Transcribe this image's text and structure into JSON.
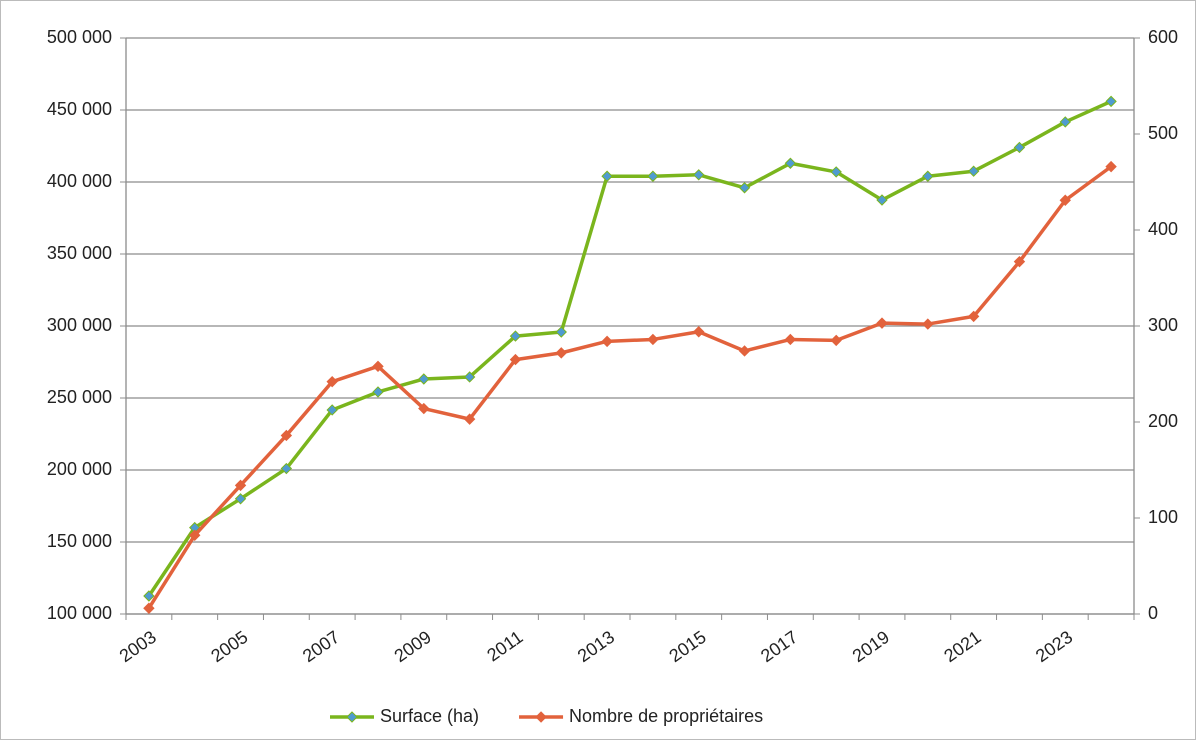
{
  "chart_data": {
    "type": "line",
    "categories": [
      "2003",
      null,
      "2005",
      null,
      "2007",
      null,
      "2009",
      null,
      "2011",
      null,
      "2013",
      null,
      "2015",
      null,
      "2017",
      null,
      "2019",
      null,
      "2021",
      null,
      "2023",
      null
    ],
    "series": [
      {
        "name": "Surface (ha)",
        "color": "#7ab51d",
        "marker_color": "#4f9bd0",
        "values": [
          112500,
          160000,
          180000,
          201000,
          241700,
          254200,
          263200,
          264600,
          293000,
          295800,
          404000,
          404000,
          405000,
          396000,
          413000,
          407000,
          387500,
          404000,
          407500,
          424000,
          441700,
          456000
        ]
      },
      {
        "name": "Nombre de propriétaires",
        "color": "#e2623c",
        "marker_color": "#e2623c",
        "axis": "y2",
        "values": [
          6,
          82,
          134,
          186,
          242,
          258,
          214,
          203,
          265,
          272,
          284,
          286,
          294,
          274,
          286,
          285,
          303,
          302,
          310,
          367,
          431,
          466
        ]
      }
    ],
    "ylim": [
      100000,
      500000
    ],
    "yticks": [
      {
        "value": 100000,
        "label": "100 000"
      },
      {
        "value": 150000,
        "label": "150 000"
      },
      {
        "value": 200000,
        "label": "200 000"
      },
      {
        "value": 250000,
        "label": "250 000"
      },
      {
        "value": 300000,
        "label": "300 000"
      },
      {
        "value": 350000,
        "label": "350 000"
      },
      {
        "value": 400000,
        "label": "400 000"
      },
      {
        "value": 450000,
        "label": "450 000"
      },
      {
        "value": 500000,
        "label": "500 000"
      }
    ],
    "y2lim": [
      0,
      600
    ],
    "y2ticks": [
      0,
      100,
      200,
      300,
      400,
      500,
      600
    ],
    "grid": true,
    "legend": "bottom"
  }
}
